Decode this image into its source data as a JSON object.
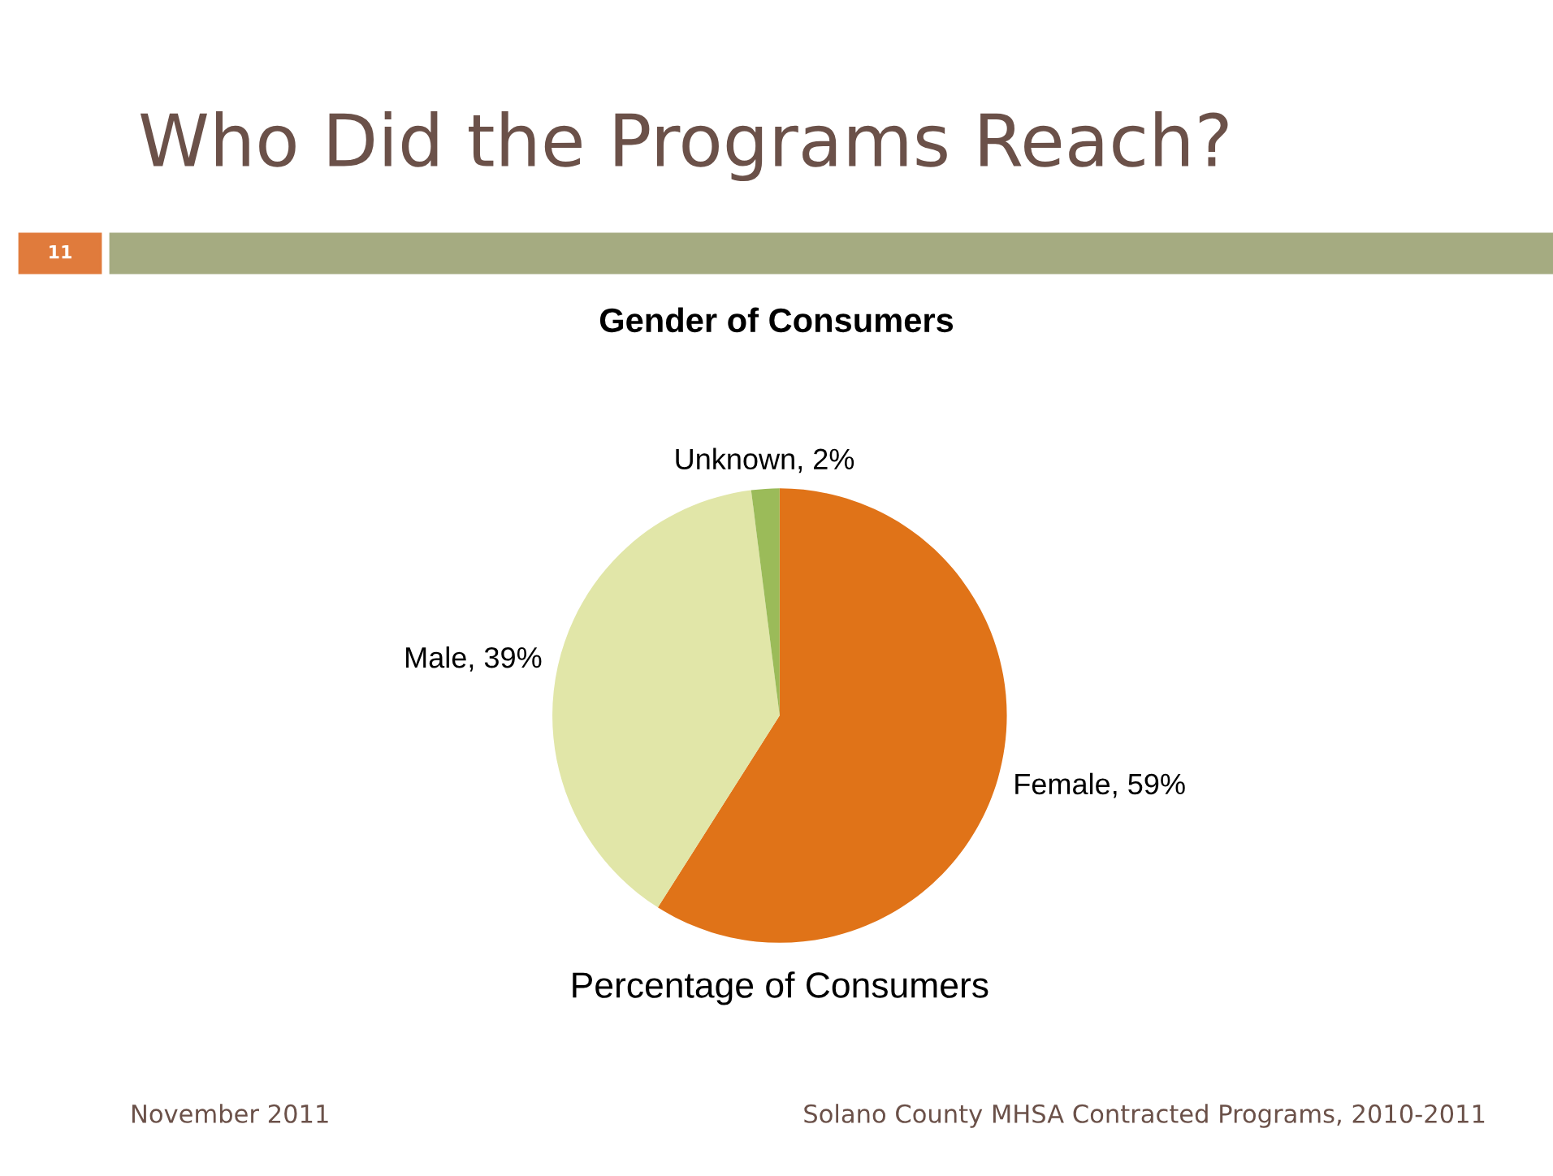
{
  "chart_data": {
    "type": "pie",
    "title": "Who Did the Programs Reach?",
    "subtitle": "Gender of Consumers",
    "xlabel": "Percentage of Consumers",
    "categories": [
      "Female",
      "Male",
      "Unknown"
    ],
    "values": [
      59,
      39,
      2
    ],
    "colors": [
      "#e07318",
      "#e1e6a8",
      "#9bbb59"
    ],
    "value_labels": [
      "59%",
      "39%",
      "2%"
    ],
    "annotations": [
      "11",
      "November 2011",
      "Solano County MHSA Contracted Programs, 2010-2011"
    ]
  }
}
